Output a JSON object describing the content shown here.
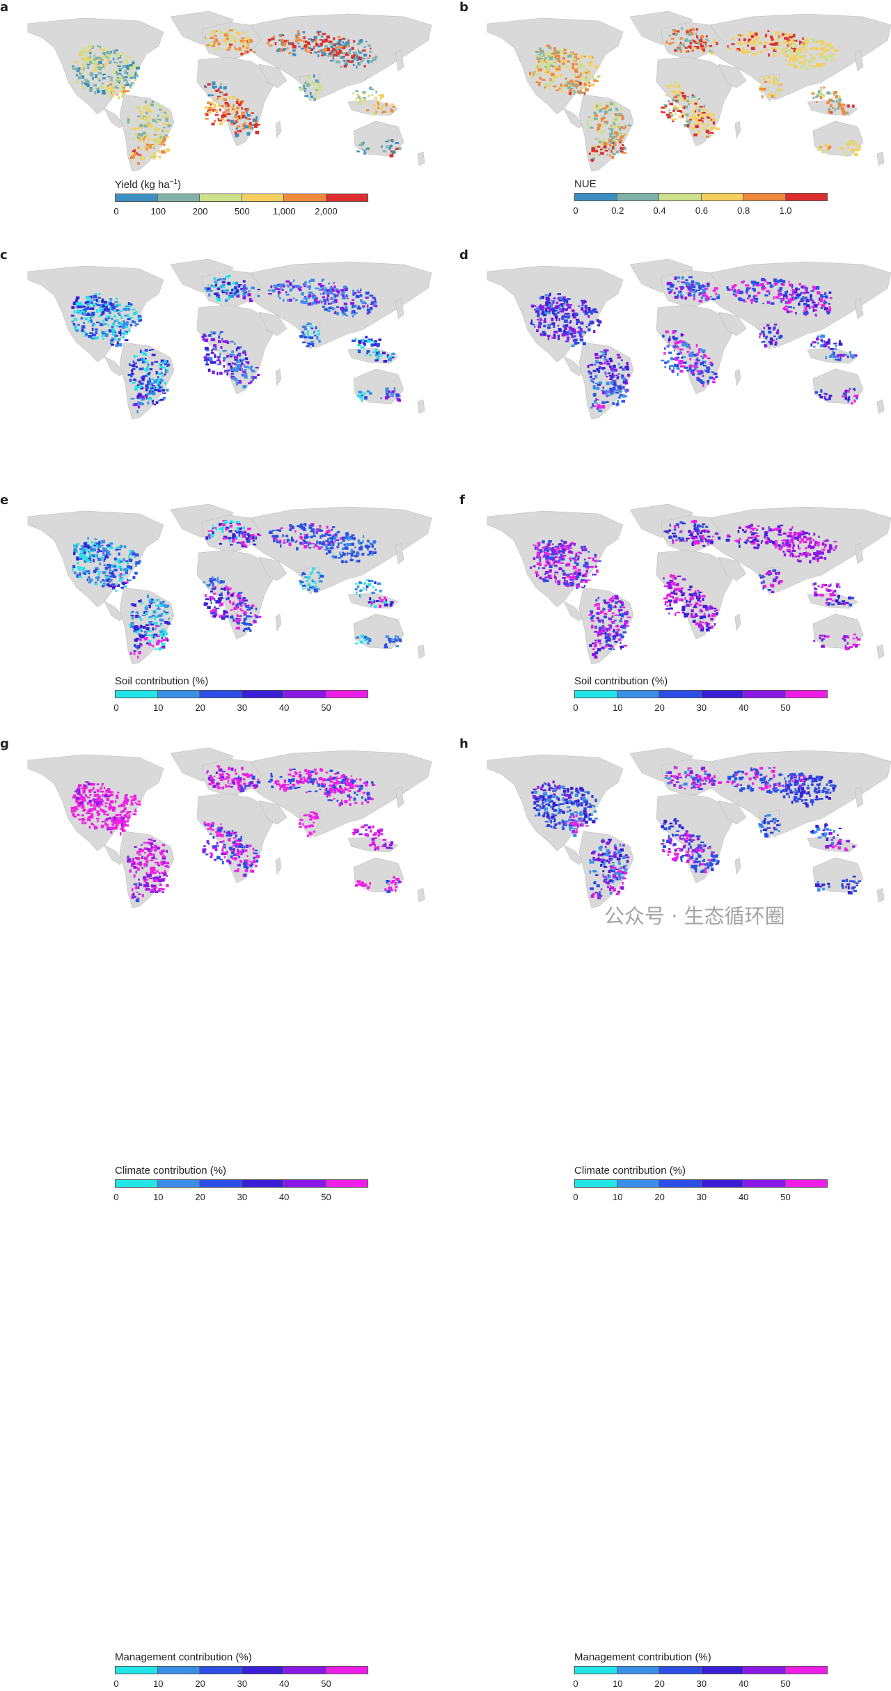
{
  "panels": [
    {
      "letter": "a",
      "title": "Yield (kg ha",
      "title_sup": "−1",
      "title_end": ")",
      "ticks": [
        "0",
        "100",
        "200",
        "500",
        "1,000",
        "2,000"
      ],
      "colors": [
        "#3b8fc1",
        "#7fb3a8",
        "#cde08a",
        "#f6cf5e",
        "#ef8a3d",
        "#dc2e2e"
      ],
      "map_palette": [
        "#3b8fc1",
        "#7fb3a8",
        "#cde08a",
        "#f6cf5e",
        "#ef8a3d",
        "#dc2e2e"
      ]
    },
    {
      "letter": "b",
      "title": "NUE",
      "title_sup": "",
      "title_end": "",
      "ticks": [
        "0",
        "0.2",
        "0.4",
        "0.6",
        "0.8",
        "1.0"
      ],
      "colors": [
        "#3b8fc1",
        "#7fb3a8",
        "#cde08a",
        "#f6cf5e",
        "#ef8a3d",
        "#dc2e2e"
      ],
      "map_palette": [
        "#f6cf5e",
        "#cde08a",
        "#ef8a3d",
        "#7fb3a8",
        "#dc2e2e",
        "#f6cf5e"
      ]
    },
    {
      "letter": "c",
      "title": "Soil contribution (%)",
      "title_sup": "",
      "title_end": "",
      "ticks": [
        "0",
        "10",
        "20",
        "30",
        "40",
        "50"
      ],
      "colors": [
        "#22e5e8",
        "#3a8ee8",
        "#2a4ee6",
        "#3a1fd6",
        "#8a19e8",
        "#ee1ee6"
      ],
      "map_palette": [
        "#3a8ee8",
        "#2a4ee6",
        "#22e5e8",
        "#3a1fd6",
        "#3a8ee8",
        "#8a19e8"
      ]
    },
    {
      "letter": "d",
      "title": "Soil contribution (%)",
      "title_sup": "",
      "title_end": "",
      "ticks": [
        "0",
        "10",
        "20",
        "30",
        "40",
        "50"
      ],
      "colors": [
        "#22e5e8",
        "#3a8ee8",
        "#2a4ee6",
        "#3a1fd6",
        "#8a19e8",
        "#ee1ee6"
      ],
      "map_palette": [
        "#2a4ee6",
        "#3a1fd6",
        "#8a19e8",
        "#3a8ee8",
        "#2a4ee6",
        "#ee1ee6"
      ]
    },
    {
      "letter": "e",
      "title": "Climate contribution (%)",
      "title_sup": "",
      "title_end": "",
      "ticks": [
        "0",
        "10",
        "20",
        "30",
        "40",
        "50"
      ],
      "colors": [
        "#22e5e8",
        "#3a8ee8",
        "#2a4ee6",
        "#3a1fd6",
        "#8a19e8",
        "#ee1ee6"
      ],
      "map_palette": [
        "#2a4ee6",
        "#3a8ee8",
        "#22e5e8",
        "#3a1fd6",
        "#ee1ee6",
        "#2a4ee6"
      ]
    },
    {
      "letter": "f",
      "title": "Climate contribution (%)",
      "title_sup": "",
      "title_end": "",
      "ticks": [
        "0",
        "10",
        "20",
        "30",
        "40",
        "50"
      ],
      "colors": [
        "#22e5e8",
        "#3a8ee8",
        "#2a4ee6",
        "#3a1fd6",
        "#8a19e8",
        "#ee1ee6"
      ],
      "map_palette": [
        "#ee1ee6",
        "#8a19e8",
        "#2a4ee6",
        "#ee1ee6",
        "#3a1fd6",
        "#8a19e8"
      ]
    },
    {
      "letter": "g",
      "title": "Management contribution (%)",
      "title_sup": "",
      "title_end": "",
      "ticks": [
        "0",
        "10",
        "20",
        "30",
        "40",
        "50"
      ],
      "colors": [
        "#22e5e8",
        "#3a8ee8",
        "#2a4ee6",
        "#3a1fd6",
        "#8a19e8",
        "#ee1ee6"
      ],
      "map_palette": [
        "#ee1ee6",
        "#ee1ee6",
        "#ee1ee6",
        "#8a19e8",
        "#ee1ee6",
        "#2a4ee6"
      ]
    },
    {
      "letter": "h",
      "title": "Management contribution (%)",
      "title_sup": "",
      "title_end": "",
      "ticks": [
        "0",
        "10",
        "20",
        "30",
        "40",
        "50"
      ],
      "colors": [
        "#22e5e8",
        "#3a8ee8",
        "#2a4ee6",
        "#3a1fd6",
        "#8a19e8",
        "#ee1ee6"
      ],
      "map_palette": [
        "#2a4ee6",
        "#3a1fd6",
        "#3a8ee8",
        "#8a19e8",
        "#ee1ee6",
        "#2a4ee6"
      ]
    }
  ],
  "land_color": "#d9d9d9",
  "watermark": "公众号 · 生态循环圈"
}
